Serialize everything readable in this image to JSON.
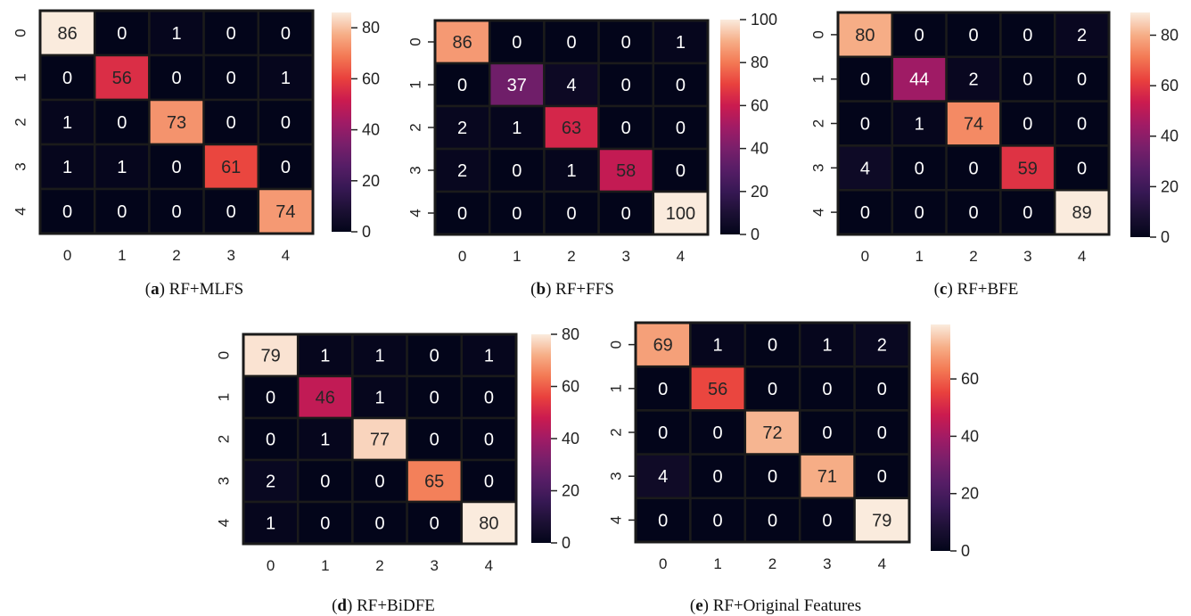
{
  "chart_data": [
    {
      "type": "heatmap",
      "panel_label": "a",
      "caption": "RF+MLFS",
      "x_ticks": [
        "0",
        "1",
        "2",
        "3",
        "4"
      ],
      "y_ticks": [
        "0",
        "1",
        "2",
        "3",
        "4"
      ],
      "matrix": [
        [
          86,
          0,
          1,
          0,
          0
        ],
        [
          0,
          56,
          0,
          0,
          1
        ],
        [
          1,
          0,
          73,
          0,
          0
        ],
        [
          1,
          1,
          0,
          61,
          0
        ],
        [
          0,
          0,
          0,
          0,
          74
        ]
      ],
      "color_range": [
        0,
        86
      ],
      "colorbar_ticks": [
        0,
        20,
        40,
        60,
        80
      ]
    },
    {
      "type": "heatmap",
      "panel_label": "b",
      "caption": "RF+FFS",
      "x_ticks": [
        "0",
        "1",
        "2",
        "3",
        "4"
      ],
      "y_ticks": [
        "0",
        "1",
        "2",
        "3",
        "4"
      ],
      "matrix": [
        [
          86,
          0,
          0,
          0,
          1
        ],
        [
          0,
          37,
          4,
          0,
          0
        ],
        [
          2,
          1,
          63,
          0,
          0
        ],
        [
          2,
          0,
          1,
          58,
          0
        ],
        [
          0,
          0,
          0,
          0,
          100
        ]
      ],
      "color_range": [
        0,
        100
      ],
      "colorbar_ticks": [
        0,
        20,
        40,
        60,
        80,
        100
      ]
    },
    {
      "type": "heatmap",
      "panel_label": "c",
      "caption": "RF+BFE",
      "x_ticks": [
        "0",
        "1",
        "2",
        "3",
        "4"
      ],
      "y_ticks": [
        "0",
        "1",
        "2",
        "3",
        "4"
      ],
      "matrix": [
        [
          80,
          0,
          0,
          0,
          2
        ],
        [
          0,
          44,
          2,
          0,
          0
        ],
        [
          0,
          1,
          74,
          0,
          0
        ],
        [
          4,
          0,
          0,
          59,
          0
        ],
        [
          0,
          0,
          0,
          0,
          89
        ]
      ],
      "color_range": [
        0,
        89
      ],
      "colorbar_ticks": [
        0,
        20,
        40,
        60,
        80
      ]
    },
    {
      "type": "heatmap",
      "panel_label": "d",
      "caption": "RF+BiDFE",
      "x_ticks": [
        "0",
        "1",
        "2",
        "3",
        "4"
      ],
      "y_ticks": [
        "0",
        "1",
        "2",
        "3",
        "4"
      ],
      "matrix": [
        [
          79,
          1,
          1,
          0,
          1
        ],
        [
          0,
          46,
          1,
          0,
          0
        ],
        [
          0,
          1,
          77,
          0,
          0
        ],
        [
          2,
          0,
          0,
          65,
          0
        ],
        [
          1,
          0,
          0,
          0,
          80
        ]
      ],
      "color_range": [
        0,
        80
      ],
      "colorbar_ticks": [
        0,
        20,
        40,
        60,
        80
      ]
    },
    {
      "type": "heatmap",
      "panel_label": "e",
      "caption": "RF+Original Features",
      "x_ticks": [
        "0",
        "1",
        "2",
        "3",
        "4"
      ],
      "y_ticks": [
        "0",
        "1",
        "2",
        "3",
        "4"
      ],
      "matrix": [
        [
          69,
          1,
          0,
          1,
          2
        ],
        [
          0,
          56,
          0,
          0,
          0
        ],
        [
          0,
          0,
          72,
          0,
          0
        ],
        [
          4,
          0,
          0,
          71,
          0
        ],
        [
          0,
          0,
          0,
          0,
          79
        ]
      ],
      "color_range": [
        0,
        79
      ],
      "colorbar_ticks": [
        0,
        20,
        40,
        60
      ]
    }
  ]
}
